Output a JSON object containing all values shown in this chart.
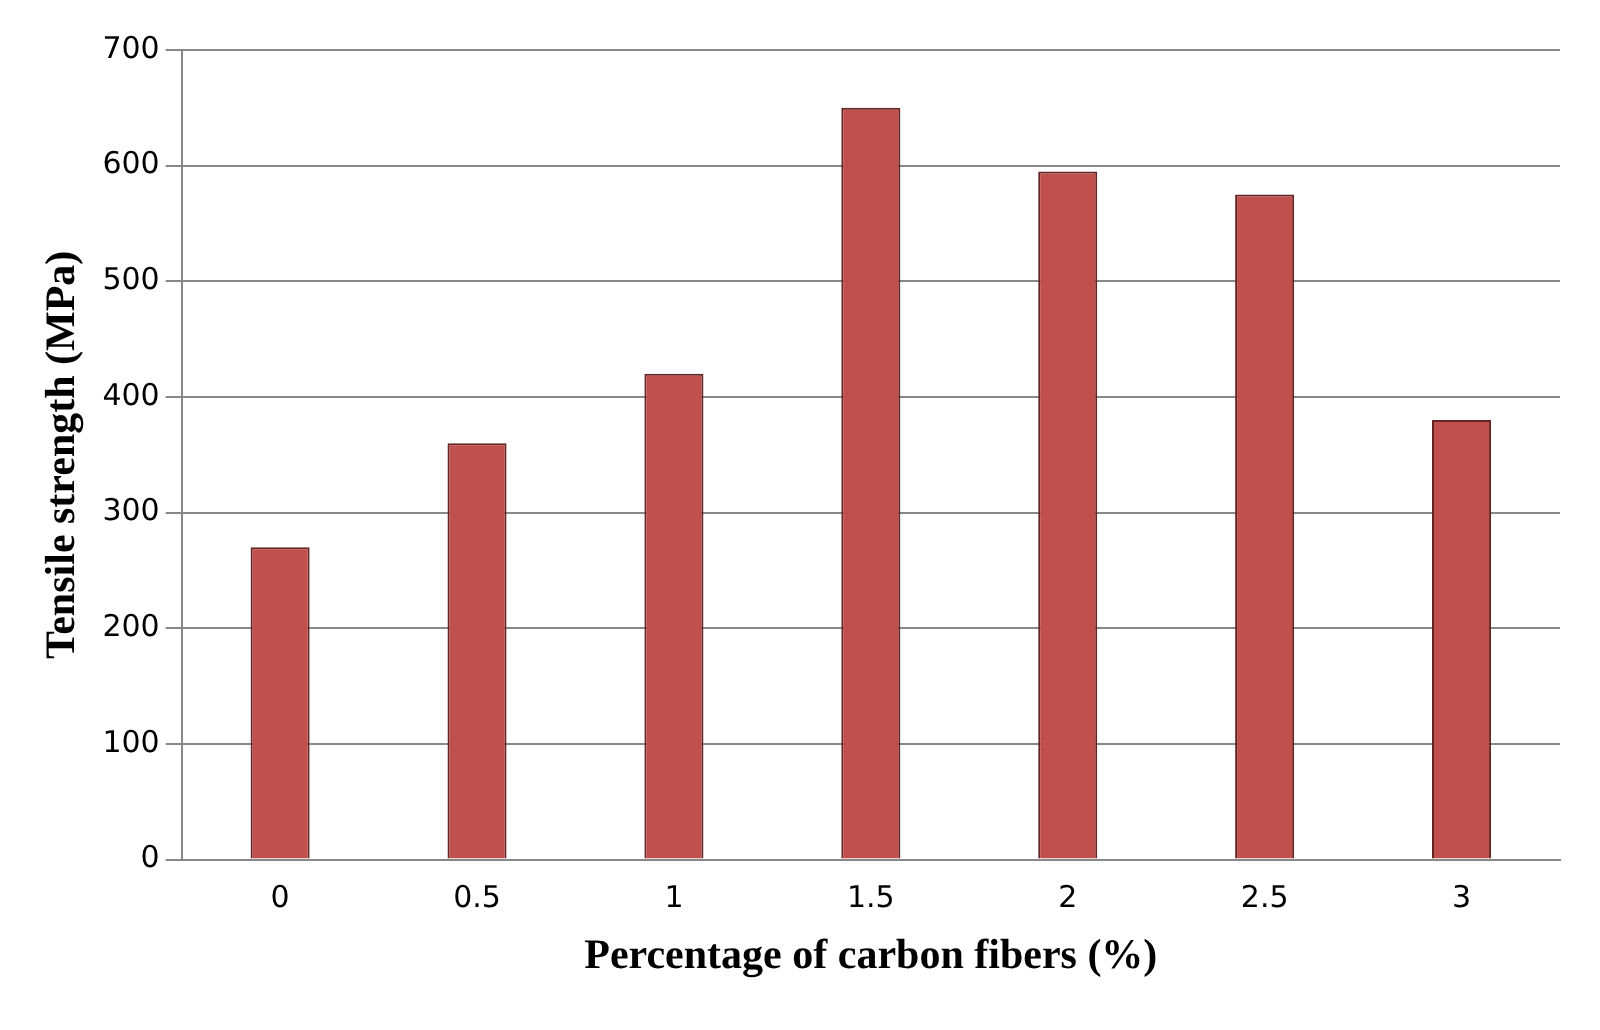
{
  "chart_data": {
    "type": "bar",
    "xlabel": "Percentage of carbon fibers (%)",
    "ylabel": "Tensile strength (MPa)",
    "categories": [
      "0",
      "0.5",
      "1",
      "1.5",
      "2",
      "2.5",
      "3"
    ],
    "values": [
      270,
      360,
      420,
      650,
      595,
      575,
      380
    ],
    "color": "#c0504d",
    "ylim": [
      0,
      700
    ],
    "yticks": [
      0,
      100,
      200,
      300,
      400,
      500,
      600,
      700
    ],
    "grid": "y",
    "legend": false
  }
}
